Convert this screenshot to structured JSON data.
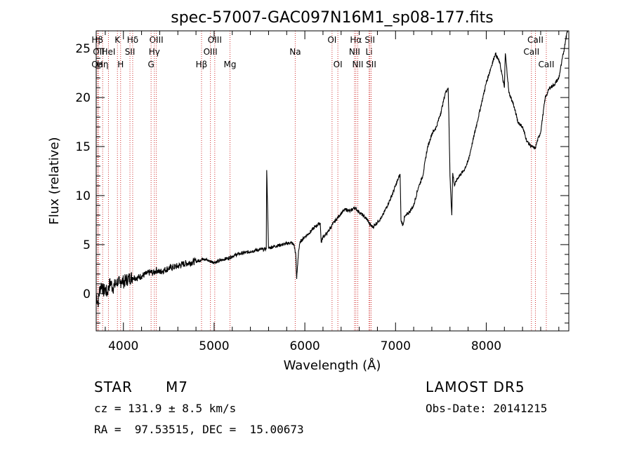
{
  "chart_data": {
    "type": "line",
    "title": "spec-57007-GAC097N16M1_sp08-177.fits",
    "xlabel": "Wavelength (Å)",
    "ylabel": "Flux (relative)",
    "xlim": [
      3700,
      8910
    ],
    "ylim": [
      -3.8,
      26.8
    ],
    "x_ticks": [
      4000,
      5000,
      6000,
      7000,
      8000
    ],
    "y_ticks": [
      0,
      5,
      10,
      15,
      20,
      25
    ],
    "x_tick_labels": [
      "4000",
      "5000",
      "6000",
      "7000",
      "8000"
    ],
    "y_tick_labels": [
      "0",
      "5",
      "10",
      "15",
      "20",
      "25"
    ],
    "grid": false,
    "legend": "none",
    "line_color": "#000000",
    "marker_color": "#d03030",
    "series": [
      {
        "values_x": [
          3700,
          3720,
          3740,
          3760,
          3780,
          3800,
          3820,
          3840,
          3860,
          3880,
          3900,
          3920,
          3940,
          3960,
          3980,
          4000,
          4050,
          4100,
          4150,
          4200,
          4250,
          4300,
          4330,
          4360,
          4400,
          4450,
          4500,
          4550,
          4600,
          4650,
          4700,
          4750,
          4800,
          4850,
          4880,
          4900,
          4950,
          5000,
          5050,
          5100,
          5150,
          5200,
          5250,
          5300,
          5350,
          5400,
          5450,
          5500,
          5550,
          5575,
          5580,
          5600,
          5650,
          5700,
          5750,
          5800,
          5850,
          5880,
          5900,
          5910,
          5930,
          5950,
          6000,
          6050,
          6100,
          6150,
          6170,
          6180,
          6200,
          6250,
          6300,
          6350,
          6400,
          6450,
          6500,
          6550,
          6600,
          6650,
          6700,
          6720,
          6750,
          6800,
          6850,
          6900,
          6950,
          7000,
          7050,
          7060,
          7080,
          7100,
          7150,
          7200,
          7250,
          7300,
          7350,
          7400,
          7450,
          7500,
          7550,
          7580,
          7590,
          7600,
          7620,
          7630,
          7650,
          7670,
          7700,
          7750,
          7800,
          7850,
          7900,
          7950,
          8000,
          8050,
          8100,
          8150,
          8200,
          8210,
          8250,
          8300,
          8350,
          8400,
          8450,
          8500,
          8540,
          8560,
          8600,
          8650,
          8700,
          8750,
          8800,
          8830,
          8860,
          8880,
          8900
        ],
        "values_y": [
          0.0,
          -1.0,
          0.5,
          1.0,
          0.2,
          0.5,
          0.0,
          0.8,
          1.2,
          0.6,
          0.8,
          1.0,
          1.3,
          1.0,
          1.4,
          1.2,
          1.5,
          1.7,
          1.6,
          1.8,
          2.0,
          2.2,
          2.1,
          2.4,
          2.2,
          2.4,
          2.6,
          2.7,
          2.8,
          3.0,
          3.1,
          3.2,
          3.3,
          3.4,
          3.6,
          3.5,
          3.3,
          3.2,
          3.3,
          3.5,
          3.6,
          3.8,
          4.0,
          4.1,
          4.2,
          4.3,
          4.4,
          4.5,
          4.5,
          4.6,
          12.6,
          4.6,
          4.8,
          4.9,
          5.0,
          5.1,
          5.2,
          5.0,
          4.0,
          1.5,
          4.3,
          5.3,
          5.8,
          6.2,
          6.7,
          7.1,
          7.2,
          5.2,
          5.8,
          6.2,
          7.0,
          7.6,
          8.2,
          8.6,
          8.4,
          8.8,
          8.3,
          7.9,
          7.4,
          7.0,
          6.8,
          7.3,
          7.8,
          8.8,
          9.8,
          11.0,
          12.2,
          7.5,
          7.0,
          7.8,
          8.3,
          9.0,
          10.8,
          12.0,
          14.8,
          16.3,
          17.0,
          18.5,
          20.5,
          21.0,
          17.0,
          12.0,
          8.0,
          12.3,
          11.0,
          11.5,
          12.0,
          12.5,
          13.5,
          15.5,
          17.5,
          19.5,
          21.5,
          23.0,
          24.5,
          23.5,
          21.0,
          24.5,
          20.5,
          19.3,
          17.5,
          17.0,
          15.5,
          15.0,
          14.8,
          15.5,
          16.5,
          20.0,
          21.0,
          21.3,
          22.0,
          23.5,
          25.0,
          26.2,
          27.0
        ]
      }
    ],
    "line_markers": [
      {
        "name": "Hβ",
        "x": 3713,
        "row": 1
      },
      {
        "name": "OII",
        "x": 3727,
        "row": 2
      },
      {
        "name": "Qa",
        "x": 3713,
        "row": 3
      },
      {
        "name": "Hη",
        "x": 3771,
        "row": 3
      },
      {
        "name": "HeI",
        "x": 3835,
        "row": 2
      },
      {
        "name": "K",
        "x": 3934,
        "row": 1
      },
      {
        "name": "H",
        "x": 3969,
        "row": 3
      },
      {
        "name": "Hδ",
        "x": 4102,
        "row": 1
      },
      {
        "name": "SII",
        "x": 4072,
        "row": 2
      },
      {
        "name": "OIII",
        "x": 4363,
        "row": 1
      },
      {
        "name": "Hγ",
        "x": 4341,
        "row": 2
      },
      {
        "name": "G",
        "x": 4305,
        "row": 3
      },
      {
        "name": "Hβ",
        "x": 4861,
        "row": 3
      },
      {
        "name": "OIII",
        "x": 5007,
        "row": 1
      },
      {
        "name": "OIII",
        "x": 4959,
        "row": 2
      },
      {
        "name": "Mg",
        "x": 5175,
        "row": 3
      },
      {
        "name": "Na",
        "x": 5894,
        "row": 2
      },
      {
        "name": "OI",
        "x": 6300,
        "row": 1
      },
      {
        "name": "OI",
        "x": 6364,
        "row": 3
      },
      {
        "name": "Hα",
        "x": 6563,
        "row": 1
      },
      {
        "name": "NII",
        "x": 6548,
        "row": 2
      },
      {
        "name": "NII",
        "x": 6584,
        "row": 3
      },
      {
        "name": "SII",
        "x": 6717,
        "row": 1
      },
      {
        "name": "Li",
        "x": 6708,
        "row": 2
      },
      {
        "name": "SII",
        "x": 6731,
        "row": 3
      },
      {
        "name": "CaII",
        "x": 8542,
        "row": 1
      },
      {
        "name": "CaII",
        "x": 8498,
        "row": 2
      },
      {
        "name": "CaII",
        "x": 8662,
        "row": 3
      }
    ]
  },
  "info": {
    "object_class": "STAR",
    "subclass": "M7",
    "survey": "LAMOST DR5",
    "cz": "cz = 131.9 ± 8.5 km/s",
    "obs_date": "Obs-Date: 20141215",
    "coords": "RA =  97.53515, DEC =  15.00673"
  }
}
